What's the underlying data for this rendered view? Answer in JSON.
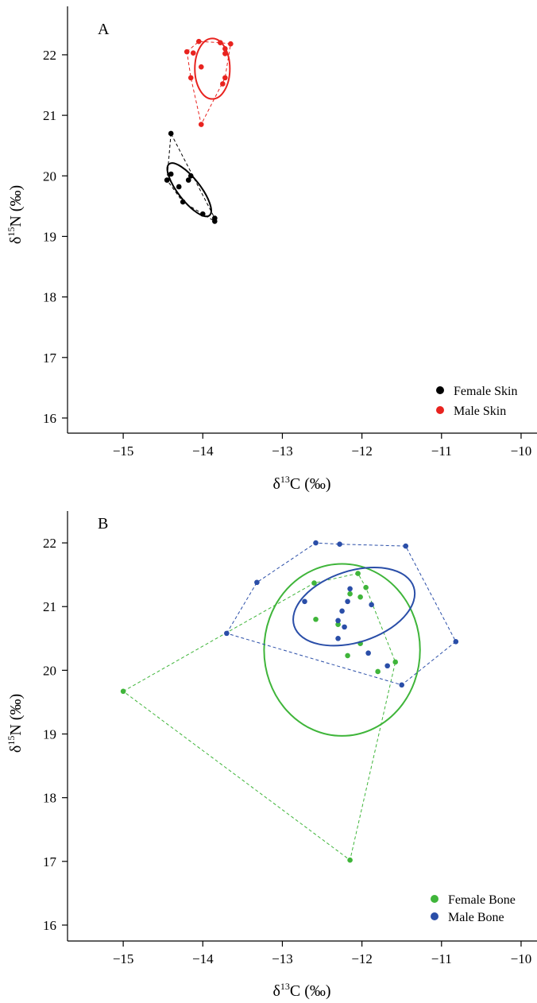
{
  "chart_data": [
    {
      "type": "scatter",
      "panel_label": "A",
      "xlabel_main": "δ",
      "xlabel_sup": "13",
      "xlabel_rest": "C (‰)",
      "ylabel_main": "δ",
      "ylabel_sup": "15",
      "ylabel_rest": "N (‰)",
      "xlim": [
        -15.7,
        -9.8
      ],
      "ylim": [
        15.75,
        22.8
      ],
      "xticks": [
        -15,
        -14,
        -13,
        -12,
        -11,
        -10
      ],
      "yticks": [
        16,
        17,
        18,
        19,
        20,
        21,
        22
      ],
      "legend_position": "bottom-right",
      "series": [
        {
          "name": "Female Skin",
          "color": "#000000",
          "points": [
            [
              -14.4,
              20.7
            ],
            [
              -14.45,
              19.93
            ],
            [
              -14.4,
              20.03
            ],
            [
              -14.3,
              19.82
            ],
            [
              -14.25,
              19.57
            ],
            [
              -14.18,
              19.93
            ],
            [
              -14.15,
              20.0
            ],
            [
              -14.0,
              19.37
            ],
            [
              -13.85,
              19.3
            ],
            [
              -13.85,
              19.25
            ]
          ],
          "hull": [
            [
              -14.4,
              20.7
            ],
            [
              -14.45,
              19.93
            ],
            [
              -14.25,
              19.57
            ],
            [
              -14.0,
              19.37
            ],
            [
              -13.85,
              19.25
            ],
            [
              -13.85,
              19.3
            ]
          ],
          "ellipse": {
            "cx": -14.17,
            "cy": 19.77,
            "rx": 0.14,
            "ry": 0.54,
            "rotation_deg": -38
          }
        },
        {
          "name": "Male Skin",
          "color": "#e8231f",
          "points": [
            [
              -14.2,
              22.05
            ],
            [
              -14.15,
              21.62
            ],
            [
              -14.12,
              22.03
            ],
            [
              -14.05,
              22.22
            ],
            [
              -14.02,
              21.8
            ],
            [
              -14.02,
              20.85
            ],
            [
              -13.78,
              22.2
            ],
            [
              -13.75,
              21.52
            ],
            [
              -13.72,
              21.62
            ],
            [
              -13.72,
              22.1
            ],
            [
              -13.72,
              22.02
            ],
            [
              -13.65,
              22.18
            ]
          ],
          "hull": [
            [
              -14.2,
              22.05
            ],
            [
              -14.05,
              22.22
            ],
            [
              -13.78,
              22.2
            ],
            [
              -13.65,
              22.18
            ],
            [
              -13.72,
              21.62
            ],
            [
              -14.02,
              20.85
            ],
            [
              -14.15,
              21.62
            ]
          ],
          "ellipse": {
            "cx": -13.88,
            "cy": 21.77,
            "rx": 0.22,
            "ry": 0.5,
            "rotation_deg": 0
          }
        }
      ]
    },
    {
      "type": "scatter",
      "panel_label": "B",
      "xlabel_main": "δ",
      "xlabel_sup": "13",
      "xlabel_rest": "C (‰)",
      "ylabel_main": "δ",
      "ylabel_sup": "15",
      "ylabel_rest": "N (‰)",
      "xlim": [
        -15.7,
        -9.8
      ],
      "ylim": [
        15.75,
        22.5
      ],
      "xticks": [
        -15,
        -14,
        -13,
        -12,
        -11,
        -10
      ],
      "yticks": [
        16,
        17,
        18,
        19,
        20,
        21,
        22
      ],
      "legend_position": "bottom-right",
      "series": [
        {
          "name": "Female Bone",
          "color": "#3fb53a",
          "points": [
            [
              -15.0,
              19.67
            ],
            [
              -12.15,
              17.02
            ],
            [
              -12.6,
              21.37
            ],
            [
              -12.58,
              20.8
            ],
            [
              -12.3,
              20.72
            ],
            [
              -12.18,
              20.23
            ],
            [
              -12.15,
              21.2
            ],
            [
              -12.05,
              21.52
            ],
            [
              -12.02,
              21.15
            ],
            [
              -12.02,
              20.42
            ],
            [
              -11.95,
              21.3
            ],
            [
              -11.8,
              19.98
            ],
            [
              -11.58,
              20.13
            ]
          ],
          "hull": [
            [
              -15.0,
              19.67
            ],
            [
              -12.6,
              21.37
            ],
            [
              -12.05,
              21.52
            ],
            [
              -11.95,
              21.3
            ],
            [
              -11.58,
              20.13
            ],
            [
              -12.15,
              17.02
            ]
          ],
          "ellipse": {
            "cx": -12.25,
            "cy": 20.32,
            "rx": 0.98,
            "ry": 1.35,
            "rotation_deg": 0
          }
        },
        {
          "name": "Male Bone",
          "color": "#2a4ea8",
          "points": [
            [
              -13.7,
              20.58
            ],
            [
              -13.32,
              21.38
            ],
            [
              -12.58,
              22.0
            ],
            [
              -12.28,
              21.98
            ],
            [
              -11.45,
              21.95
            ],
            [
              -10.82,
              20.45
            ],
            [
              -11.5,
              19.77
            ],
            [
              -12.72,
              21.08
            ],
            [
              -12.3,
              20.78
            ],
            [
              -12.3,
              20.5
            ],
            [
              -12.25,
              20.93
            ],
            [
              -12.22,
              20.68
            ],
            [
              -12.18,
              21.08
            ],
            [
              -12.15,
              21.28
            ],
            [
              -11.92,
              20.27
            ],
            [
              -11.88,
              21.03
            ],
            [
              -11.68,
              20.07
            ]
          ],
          "hull": [
            [
              -13.7,
              20.58
            ],
            [
              -13.32,
              21.38
            ],
            [
              -12.58,
              22.0
            ],
            [
              -12.28,
              21.98
            ],
            [
              -11.45,
              21.95
            ],
            [
              -10.82,
              20.45
            ],
            [
              -11.5,
              19.77
            ]
          ],
          "ellipse": {
            "cx": -12.1,
            "cy": 21.0,
            "rx": 0.79,
            "ry": 0.56,
            "rotation_deg": -18
          }
        }
      ]
    }
  ]
}
